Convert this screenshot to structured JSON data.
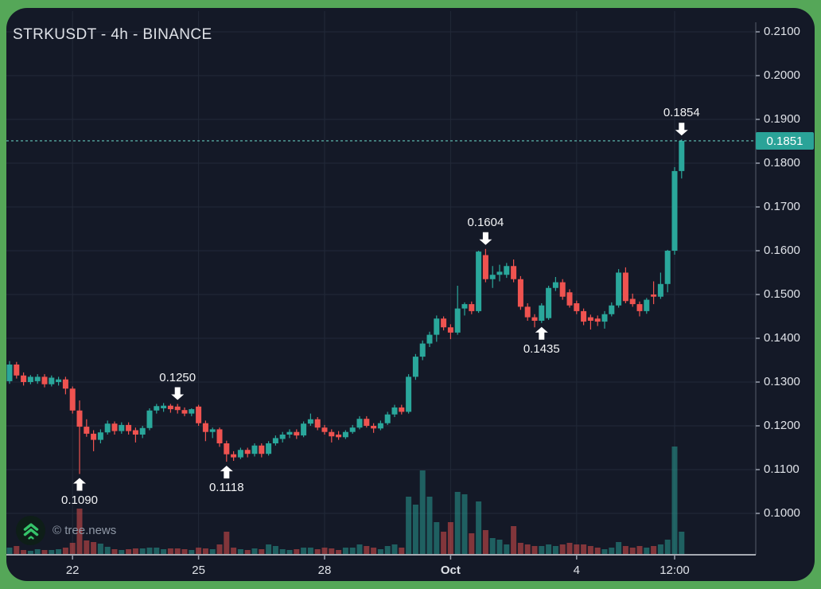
{
  "watermark": {
    "text": "© tree.news",
    "logo": "double-chevron-up-icon"
  },
  "price_line": {
    "label": "0.1851",
    "value": 0.1851
  },
  "colors": {
    "up": "#2aa79b",
    "down": "#ef5350",
    "panel_bg": "#141927",
    "page_border_green": "#55a758",
    "grid": "#222938",
    "axis_line_vertical": "#565d6b",
    "axis_line_horizontal": "#d7dae1",
    "tick_mark": "#9aa1ae",
    "axis_text": "#dfe2e8",
    "price_line_dash": "#63c6ba",
    "price_label_bg": "#2aa398",
    "annotation": "#ffffff",
    "watermark_text": "#9099a7",
    "logo_green": "#35c46a"
  },
  "chart_data": {
    "type": "candlestick",
    "title": "STRKUSDT - 4h - BINANCE",
    "symbol": "STRKUSDT",
    "timeframe": "4h",
    "exchange": "BINANCE",
    "current_price": 0.1851,
    "ylim": [
      0.0955,
      0.2125
    ],
    "grid": true,
    "price_axis_ticks": [
      {
        "value": 0.21,
        "label": "0.2100"
      },
      {
        "value": 0.2,
        "label": "0.2000"
      },
      {
        "value": 0.19,
        "label": "0.1900"
      },
      {
        "value": 0.18,
        "label": "0.1800"
      },
      {
        "value": 0.17,
        "label": "0.1700"
      },
      {
        "value": 0.16,
        "label": "0.1600"
      },
      {
        "value": 0.15,
        "label": "0.1500"
      },
      {
        "value": 0.14,
        "label": "0.1400"
      },
      {
        "value": 0.13,
        "label": "0.1300"
      },
      {
        "value": 0.12,
        "label": "0.1200"
      },
      {
        "value": 0.11,
        "label": "0.1100"
      },
      {
        "value": 0.1,
        "label": "0.1000"
      }
    ],
    "time_axis_ticks": [
      {
        "candle_index": 9,
        "label": "22",
        "emphasis": false
      },
      {
        "candle_index": 27,
        "label": "25",
        "emphasis": false
      },
      {
        "candle_index": 45,
        "label": "28",
        "emphasis": false
      },
      {
        "candle_index": 63,
        "label": "Oct",
        "emphasis": true
      },
      {
        "candle_index": 81,
        "label": "4",
        "emphasis": false
      },
      {
        "candle_index": 95,
        "label": "12:00",
        "emphasis": false
      }
    ],
    "annotations": [
      {
        "candle_index": 10,
        "position": "below",
        "price": 0.109,
        "label": "0.1090"
      },
      {
        "candle_index": 24,
        "position": "above",
        "price": 0.125,
        "label": "0.1250"
      },
      {
        "candle_index": 31,
        "position": "below",
        "price": 0.1118,
        "label": "0.1118"
      },
      {
        "candle_index": 68,
        "position": "above",
        "price": 0.1604,
        "label": "0.1604"
      },
      {
        "candle_index": 76,
        "position": "below",
        "price": 0.1435,
        "label": "0.1435"
      },
      {
        "candle_index": 96,
        "position": "above",
        "price": 0.1854,
        "label": "0.1854"
      }
    ],
    "volume_unit": "relative",
    "candles_ohlcv": [
      [
        0.1302,
        0.1348,
        0.1296,
        0.134,
        8
      ],
      [
        0.134,
        0.1346,
        0.1308,
        0.1315,
        10
      ],
      [
        0.1315,
        0.1322,
        0.1292,
        0.13,
        5
      ],
      [
        0.13,
        0.1316,
        0.1295,
        0.1312,
        4
      ],
      [
        0.1302,
        0.1318,
        0.1296,
        0.1312,
        6
      ],
      [
        0.1312,
        0.1318,
        0.1288,
        0.1295,
        5
      ],
      [
        0.1295,
        0.1315,
        0.129,
        0.131,
        5
      ],
      [
        0.13,
        0.1312,
        0.1292,
        0.1306,
        6
      ],
      [
        0.1306,
        0.1312,
        0.1272,
        0.1285,
        8
      ],
      [
        0.1285,
        0.129,
        0.1228,
        0.1235,
        14
      ],
      [
        0.1235,
        0.1258,
        0.109,
        0.1198,
        57
      ],
      [
        0.1198,
        0.1215,
        0.1175,
        0.1182,
        17
      ],
      [
        0.1182,
        0.119,
        0.1142,
        0.1168,
        15
      ],
      [
        0.1168,
        0.1192,
        0.116,
        0.1185,
        13
      ],
      [
        0.1185,
        0.1212,
        0.118,
        0.1205,
        9
      ],
      [
        0.1205,
        0.121,
        0.118,
        0.1188,
        6
      ],
      [
        0.1188,
        0.1208,
        0.1182,
        0.1202,
        5
      ],
      [
        0.1202,
        0.1208,
        0.118,
        0.1188,
        6
      ],
      [
        0.119,
        0.1196,
        0.1162,
        0.118,
        7
      ],
      [
        0.118,
        0.12,
        0.1172,
        0.1195,
        7
      ],
      [
        0.1195,
        0.124,
        0.119,
        0.1235,
        8
      ],
      [
        0.1235,
        0.125,
        0.1228,
        0.1245,
        8
      ],
      [
        0.124,
        0.1252,
        0.1232,
        0.1246,
        6
      ],
      [
        0.1246,
        0.125,
        0.123,
        0.1238,
        7
      ],
      [
        0.1244,
        0.125,
        0.1228,
        0.1236,
        7
      ],
      [
        0.1236,
        0.1242,
        0.1222,
        0.1228,
        6
      ],
      [
        0.1228,
        0.124,
        0.1222,
        0.1238,
        5
      ],
      [
        0.1244,
        0.1248,
        0.12,
        0.1206,
        8
      ],
      [
        0.1206,
        0.1212,
        0.1165,
        0.1186,
        7
      ],
      [
        0.1186,
        0.1196,
        0.1172,
        0.1192,
        6
      ],
      [
        0.1192,
        0.1196,
        0.1152,
        0.116,
        12
      ],
      [
        0.116,
        0.1166,
        0.1118,
        0.1135,
        28
      ],
      [
        0.1135,
        0.1142,
        0.112,
        0.1128,
        8
      ],
      [
        0.1128,
        0.115,
        0.1124,
        0.1145,
        6
      ],
      [
        0.1145,
        0.115,
        0.1128,
        0.1136,
        5
      ],
      [
        0.1136,
        0.116,
        0.113,
        0.1155,
        7
      ],
      [
        0.1155,
        0.116,
        0.1128,
        0.1136,
        6
      ],
      [
        0.1136,
        0.1165,
        0.1132,
        0.116,
        12
      ],
      [
        0.116,
        0.1178,
        0.1155,
        0.1172,
        10
      ],
      [
        0.117,
        0.1186,
        0.1162,
        0.118,
        6
      ],
      [
        0.118,
        0.1192,
        0.1172,
        0.1186,
        5
      ],
      [
        0.1186,
        0.1192,
        0.117,
        0.1178,
        6
      ],
      [
        0.1178,
        0.121,
        0.1174,
        0.1205,
        8
      ],
      [
        0.1205,
        0.1228,
        0.12,
        0.1215,
        8
      ],
      [
        0.1215,
        0.122,
        0.119,
        0.1196,
        6
      ],
      [
        0.1196,
        0.1202,
        0.118,
        0.1186,
        8
      ],
      [
        0.1186,
        0.1192,
        0.1162,
        0.1176,
        7
      ],
      [
        0.118,
        0.1188,
        0.1168,
        0.1174,
        5
      ],
      [
        0.1174,
        0.119,
        0.117,
        0.1186,
        8
      ],
      [
        0.1186,
        0.1202,
        0.1182,
        0.1196,
        8
      ],
      [
        0.1196,
        0.1222,
        0.1192,
        0.1216,
        12
      ],
      [
        0.1216,
        0.1222,
        0.1196,
        0.12,
        10
      ],
      [
        0.12,
        0.1206,
        0.1184,
        0.1194,
        8
      ],
      [
        0.1194,
        0.1212,
        0.119,
        0.1206,
        6
      ],
      [
        0.1206,
        0.1232,
        0.1202,
        0.1226,
        10
      ],
      [
        0.1226,
        0.1248,
        0.122,
        0.1242,
        12
      ],
      [
        0.1242,
        0.1248,
        0.1226,
        0.1232,
        8
      ],
      [
        0.1232,
        0.1318,
        0.1228,
        0.1312,
        72
      ],
      [
        0.1312,
        0.1364,
        0.1305,
        0.1358,
        62
      ],
      [
        0.1358,
        0.1395,
        0.135,
        0.1388,
        105
      ],
      [
        0.1388,
        0.1415,
        0.138,
        0.1408,
        72
      ],
      [
        0.1408,
        0.1452,
        0.1392,
        0.1445,
        40
      ],
      [
        0.1445,
        0.145,
        0.1418,
        0.1425,
        28
      ],
      [
        0.1425,
        0.1432,
        0.1398,
        0.1413,
        40
      ],
      [
        0.1413,
        0.152,
        0.1408,
        0.1468,
        78
      ],
      [
        0.1468,
        0.1482,
        0.1452,
        0.1478,
        75
      ],
      [
        0.1478,
        0.1484,
        0.1455,
        0.1462,
        26
      ],
      [
        0.1462,
        0.16,
        0.1458,
        0.1598,
        66
      ],
      [
        0.159,
        0.1604,
        0.1528,
        0.1535,
        30
      ],
      [
        0.1535,
        0.1565,
        0.1515,
        0.1545,
        20
      ],
      [
        0.1545,
        0.1568,
        0.153,
        0.1552,
        18
      ],
      [
        0.1545,
        0.1572,
        0.1538,
        0.1565,
        12
      ],
      [
        0.1565,
        0.158,
        0.1528,
        0.1535,
        35
      ],
      [
        0.1535,
        0.1542,
        0.1465,
        0.1472,
        14
      ],
      [
        0.1472,
        0.148,
        0.144,
        0.1448,
        12
      ],
      [
        0.1448,
        0.1455,
        0.1425,
        0.144,
        10
      ],
      [
        0.144,
        0.148,
        0.1435,
        0.1475,
        10
      ],
      [
        0.1446,
        0.152,
        0.1442,
        0.1515,
        12
      ],
      [
        0.1515,
        0.154,
        0.1508,
        0.1528,
        10
      ],
      [
        0.1528,
        0.1535,
        0.1488,
        0.1495,
        12
      ],
      [
        0.1505,
        0.1512,
        0.147,
        0.1475,
        14
      ],
      [
        0.148,
        0.1486,
        0.1455,
        0.1462,
        12
      ],
      [
        0.1462,
        0.1468,
        0.143,
        0.1438,
        12
      ],
      [
        0.1448,
        0.1454,
        0.142,
        0.144,
        10
      ],
      [
        0.1445,
        0.1452,
        0.1428,
        0.1438,
        8
      ],
      [
        0.1438,
        0.1462,
        0.1422,
        0.1455,
        6
      ],
      [
        0.1455,
        0.1482,
        0.145,
        0.1475,
        8
      ],
      [
        0.1475,
        0.1558,
        0.147,
        0.155,
        15
      ],
      [
        0.155,
        0.1562,
        0.148,
        0.1485,
        10
      ],
      [
        0.149,
        0.1502,
        0.1472,
        0.1478,
        8
      ],
      [
        0.1478,
        0.1484,
        0.145,
        0.1462,
        10
      ],
      [
        0.1462,
        0.1492,
        0.1456,
        0.1488,
        8
      ],
      [
        0.15,
        0.153,
        0.1478,
        0.1495,
        10
      ],
      [
        0.1495,
        0.155,
        0.149,
        0.1524,
        12
      ],
      [
        0.1524,
        0.1602,
        0.1505,
        0.16,
        18
      ],
      [
        0.16,
        0.1791,
        0.1591,
        0.1782,
        135
      ],
      [
        0.1782,
        0.1854,
        0.1765,
        0.1851,
        28
      ]
    ]
  }
}
